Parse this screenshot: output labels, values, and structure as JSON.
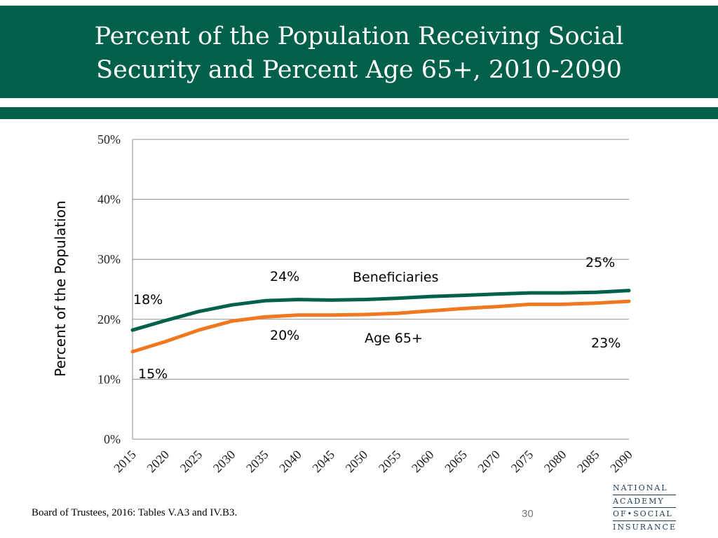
{
  "slide": {
    "title": "Percent of the Population Receiving Social\nSecurity and Percent Age 65+, 2010-2090",
    "source": "Board of Trustees, 2016: Tables V.A3 and IV.B3.",
    "page_number": "30",
    "logo_lines": [
      "NATIONAL",
      "ACADEMY",
      "OF•SOCIAL",
      "INSURANCE"
    ],
    "colors": {
      "header": "#00604a",
      "beneficiaries": "#00604a",
      "age65": "#f07820"
    }
  },
  "chart_data": {
    "type": "line",
    "title": "Percent of the Population Receiving Social Security and Percent Age 65+, 2010-2090",
    "xlabel": "",
    "ylabel": "Percent of the Population",
    "ylim": [
      0,
      50
    ],
    "y_ticks": [
      0,
      10,
      20,
      30,
      40,
      50
    ],
    "y_tick_labels": [
      "0%",
      "10%",
      "20%",
      "30%",
      "40%",
      "50%"
    ],
    "grid": true,
    "x": [
      2015,
      2020,
      2025,
      2030,
      2035,
      2040,
      2045,
      2050,
      2055,
      2060,
      2065,
      2070,
      2075,
      2080,
      2085,
      2090
    ],
    "x_tick_labels": [
      "2015",
      "2020",
      "2025",
      "2030",
      "2035",
      "2040",
      "2045",
      "2050",
      "2055",
      "2060",
      "2065",
      "2070",
      "2075",
      "2080",
      "2085",
      "2090"
    ],
    "series": [
      {
        "name": "Beneficiaries",
        "color": "#00604a",
        "values": [
          18.2,
          19.8,
          21.3,
          22.4,
          23.1,
          23.3,
          23.2,
          23.3,
          23.5,
          23.8,
          24.0,
          24.2,
          24.4,
          24.4,
          24.5,
          24.8
        ]
      },
      {
        "name": "Age 65+",
        "color": "#f07820",
        "values": [
          14.6,
          16.3,
          18.2,
          19.7,
          20.4,
          20.7,
          20.7,
          20.8,
          21.0,
          21.4,
          21.8,
          22.1,
          22.5,
          22.5,
          22.7,
          23.0
        ]
      }
    ],
    "annotations": [
      {
        "text": "18%",
        "series": "Beneficiaries"
      },
      {
        "text": "24%",
        "series": "Beneficiaries"
      },
      {
        "text": "Beneficiaries",
        "series": "Beneficiaries"
      },
      {
        "text": "25%",
        "series": "Beneficiaries"
      },
      {
        "text": "15%",
        "series": "Age 65+"
      },
      {
        "text": "20%",
        "series": "Age 65+"
      },
      {
        "text": "Age 65+",
        "series": "Age 65+"
      },
      {
        "text": "23",
        "suffix": "%",
        "series": "Age 65+"
      }
    ]
  }
}
